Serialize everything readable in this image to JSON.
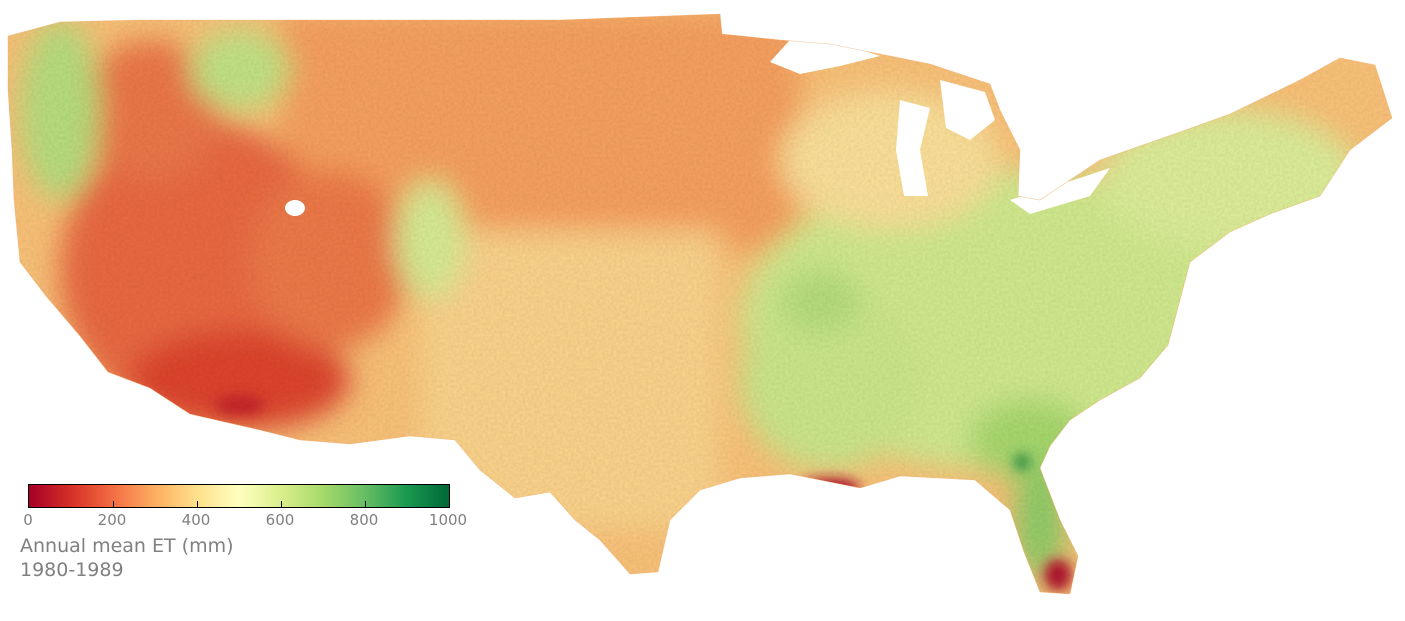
{
  "legend": {
    "title": "Annual mean ET (mm)",
    "period": "1980-1989",
    "min": 0,
    "max": 1000,
    "ticks": [
      {
        "value": 0,
        "label": "0"
      },
      {
        "value": 200,
        "label": "200"
      },
      {
        "value": 400,
        "label": "400"
      },
      {
        "value": 600,
        "label": "600"
      },
      {
        "value": 800,
        "label": "800"
      },
      {
        "value": 1000,
        "label": "1000"
      }
    ],
    "colormap": "RdYlGn",
    "colormap_stops": [
      "#a50026",
      "#d73027",
      "#f46d43",
      "#fdae61",
      "#fee08b",
      "#ffffbf",
      "#d9ef8b",
      "#a6d96a",
      "#66bd63",
      "#1a9850",
      "#006837"
    ]
  },
  "map": {
    "region": "contiguous United States",
    "colors": {
      "arid_red": "#e8553a",
      "plains_orange": "#fba866",
      "prairie_tan": "#fdd48a",
      "humid_green": "#c9e88a",
      "lake_white": "#ffffff",
      "wetland_dark": "#a50026"
    }
  }
}
